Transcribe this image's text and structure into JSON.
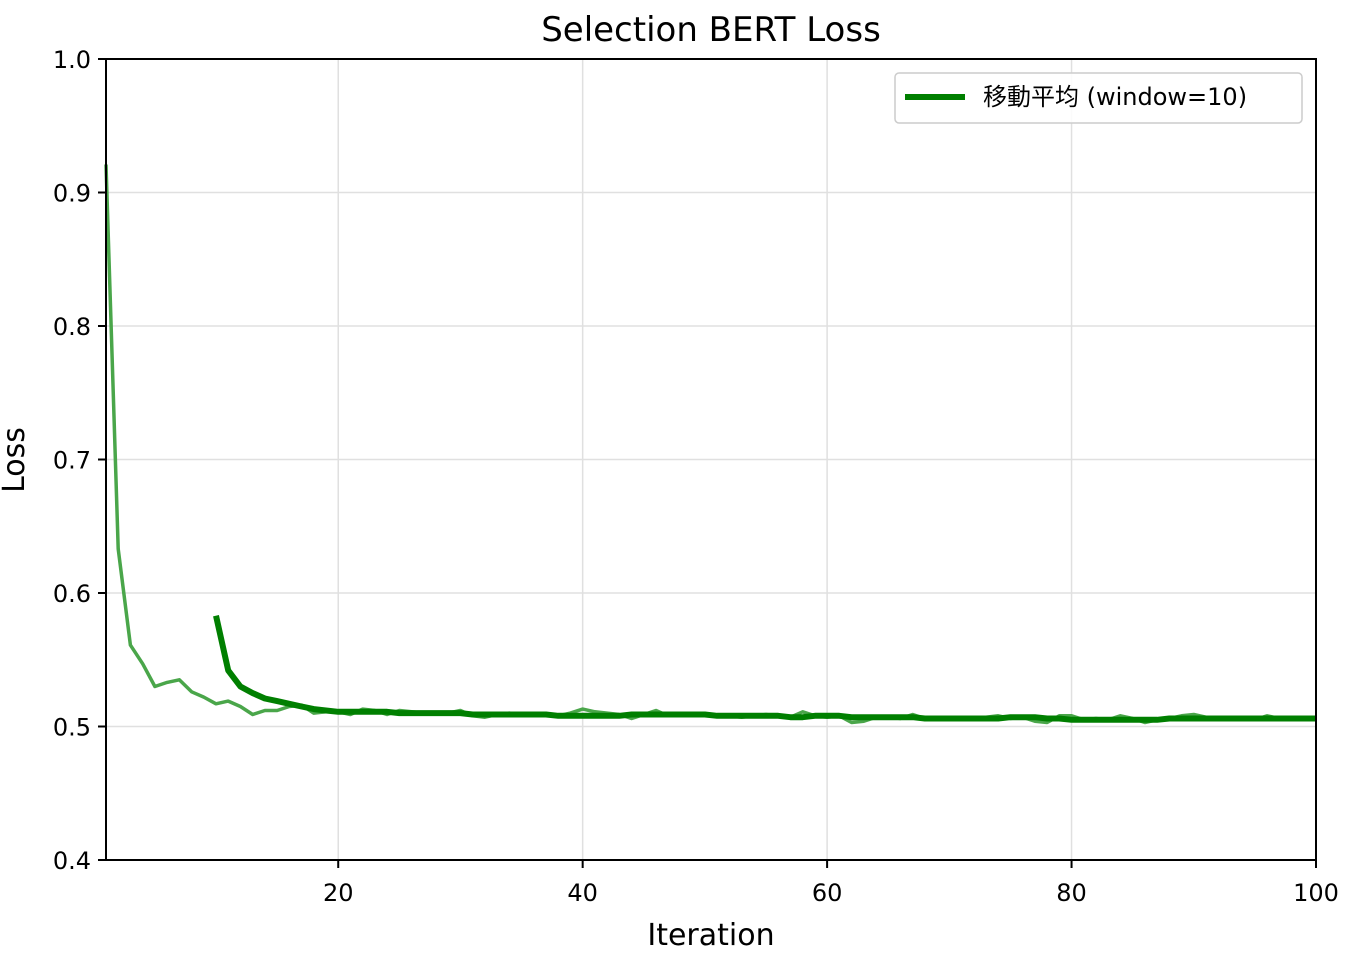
{
  "chart_data": {
    "type": "line",
    "title": "Selection BERT Loss",
    "xlabel": "Iteration",
    "ylabel": "Loss",
    "xlim": [
      1,
      100
    ],
    "ylim": [
      0.4,
      1.0
    ],
    "xticks": [
      20,
      40,
      60,
      80,
      100
    ],
    "yticks": [
      0.4,
      0.5,
      0.6,
      0.7,
      0.8,
      0.9,
      1.0
    ],
    "xtick_labels": [
      "20",
      "40",
      "60",
      "80",
      "100"
    ],
    "ytick_labels": [
      "0.4",
      "0.5",
      "0.6",
      "0.7",
      "0.8",
      "0.9",
      "1.0"
    ],
    "grid": true,
    "legend_position": "top-right",
    "colors": {
      "raw": "#4aa64a",
      "moving_average": "#007f00",
      "grid": "#e0e0e0"
    },
    "series": [
      {
        "values": [
          0.921,
          0.633,
          0.561,
          0.547,
          0.53,
          0.533,
          0.535,
          0.526,
          0.522,
          0.517,
          0.519,
          0.515,
          0.509,
          0.512,
          0.512,
          0.515,
          0.516,
          0.51,
          0.511,
          0.511,
          0.509,
          0.513,
          0.512,
          0.509,
          0.512,
          0.511,
          0.51,
          0.51,
          0.51,
          0.512,
          0.508,
          0.507,
          0.509,
          0.51,
          0.509,
          0.509,
          0.508,
          0.508,
          0.51,
          0.513,
          0.511,
          0.51,
          0.509,
          0.506,
          0.509,
          0.512,
          0.508,
          0.509,
          0.508,
          0.509,
          0.508,
          0.508,
          0.507,
          0.508,
          0.509,
          0.508,
          0.507,
          0.511,
          0.508,
          0.507,
          0.508,
          0.503,
          0.504,
          0.507,
          0.507,
          0.506,
          0.509,
          0.506,
          0.506,
          0.505,
          0.507,
          0.506,
          0.507,
          0.508,
          0.506,
          0.507,
          0.504,
          0.503,
          0.508,
          0.508,
          0.505,
          0.506,
          0.505,
          0.508,
          0.506,
          0.503,
          0.505,
          0.506,
          0.508,
          0.509,
          0.507,
          0.507,
          0.506,
          0.506,
          0.505,
          0.508,
          0.506,
          0.506,
          0.507,
          0.506
        ]
      },
      {
        "name": "移動平均 (window=10)",
        "start_x": 10,
        "values": [
          0.583,
          0.542,
          0.53,
          0.525,
          0.521,
          0.519,
          0.517,
          0.515,
          0.513,
          0.512,
          0.511,
          0.511,
          0.511,
          0.511,
          0.511,
          0.51,
          0.51,
          0.51,
          0.51,
          0.51,
          0.51,
          0.509,
          0.509,
          0.509,
          0.509,
          0.509,
          0.509,
          0.509,
          0.508,
          0.508,
          0.508,
          0.508,
          0.508,
          0.508,
          0.509,
          0.509,
          0.509,
          0.509,
          0.509,
          0.509,
          0.509,
          0.508,
          0.508,
          0.508,
          0.508,
          0.508,
          0.508,
          0.507,
          0.507,
          0.508,
          0.508,
          0.508,
          0.507,
          0.507,
          0.507,
          0.507,
          0.507,
          0.507,
          0.506,
          0.506,
          0.506,
          0.506,
          0.506,
          0.506,
          0.506,
          0.507,
          0.507,
          0.507,
          0.506,
          0.506,
          0.505,
          0.505,
          0.505,
          0.505,
          0.505,
          0.505,
          0.505,
          0.505,
          0.506,
          0.506,
          0.506,
          0.506,
          0.506,
          0.506,
          0.506,
          0.506,
          0.506,
          0.506,
          0.506,
          0.506,
          0.506
        ]
      }
    ]
  }
}
